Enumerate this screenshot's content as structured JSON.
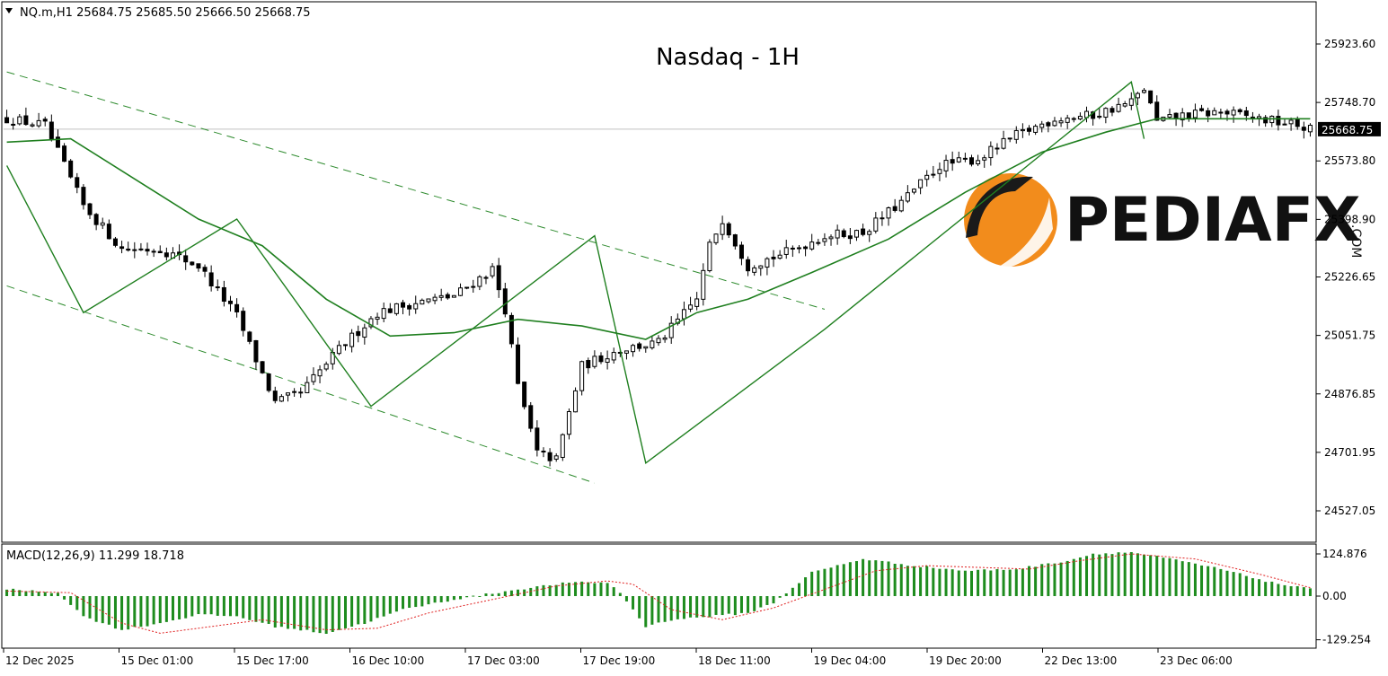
{
  "header": {
    "symbol_line": "NQ.m,H1  25684.75 25685.50 25666.50 25668.75",
    "dropdown_icon": "triangle-down-icon"
  },
  "watermark": {
    "title": "Nasdaq - 1H",
    "brand": "PEDIAFX",
    "brand_suffix": ".COM",
    "brand_color": "#f28c1c"
  },
  "colors": {
    "up_candle_fill": "#ffffff",
    "down_candle_fill": "#000000",
    "ma_line": "#1f7f1f",
    "channel_line": "#2e8b2e",
    "macd_hist": "#1e8c1e",
    "macd_signal": "#e02020",
    "current_price_line": "#c0c0c0"
  },
  "chart_data": {
    "type": "candlestick",
    "timeframe": "H1",
    "price_axis": {
      "ticks": [
        "25923.60",
        "25748.70",
        "25573.80",
        "25398.90",
        "25226.65",
        "25051.75",
        "24876.85",
        "24701.95",
        "24527.05"
      ],
      "current_price_label": "25668.75",
      "ylim": [
        24440,
        26050
      ]
    },
    "time_axis": {
      "labels": [
        "12 Dec 2025",
        "15 Dec 01:00",
        "15 Dec 17:00",
        "16 Dec 10:00",
        "17 Dec 03:00",
        "17 Dec 19:00",
        "18 Dec 11:00",
        "19 Dec 04:00",
        "19 Dec 20:00",
        "22 Dec 13:00",
        "23 Dec 06:00"
      ]
    },
    "close_path": [
      [
        0,
        25700
      ],
      [
        6,
        25680
      ],
      [
        12,
        25440
      ],
      [
        18,
        25310
      ],
      [
        24,
        25310
      ],
      [
        30,
        25260
      ],
      [
        36,
        25110
      ],
      [
        42,
        24850
      ],
      [
        46,
        24880
      ],
      [
        52,
        25010
      ],
      [
        58,
        25120
      ],
      [
        64,
        25150
      ],
      [
        70,
        25170
      ],
      [
        76,
        25250
      ],
      [
        78,
        25130
      ],
      [
        80,
        24900
      ],
      [
        83,
        24700
      ],
      [
        86,
        24680
      ],
      [
        90,
        24960
      ],
      [
        96,
        25010
      ],
      [
        102,
        25030
      ],
      [
        108,
        25160
      ],
      [
        110,
        25320
      ],
      [
        112,
        25400
      ],
      [
        116,
        25260
      ],
      [
        122,
        25300
      ],
      [
        128,
        25350
      ],
      [
        134,
        25360
      ],
      [
        140,
        25450
      ],
      [
        146,
        25560
      ],
      [
        152,
        25580
      ],
      [
        158,
        25650
      ],
      [
        164,
        25700
      ],
      [
        170,
        25710
      ],
      [
        176,
        25750
      ],
      [
        178,
        25790
      ],
      [
        180,
        25690
      ],
      [
        184,
        25710
      ],
      [
        190,
        25720
      ],
      [
        196,
        25700
      ],
      [
        202,
        25680
      ],
      [
        204,
        25668.75
      ]
    ],
    "ma_path": [
      [
        0,
        25630
      ],
      [
        10,
        25640
      ],
      [
        20,
        25520
      ],
      [
        30,
        25400
      ],
      [
        40,
        25320
      ],
      [
        50,
        25160
      ],
      [
        60,
        25050
      ],
      [
        70,
        25060
      ],
      [
        80,
        25100
      ],
      [
        90,
        25080
      ],
      [
        100,
        25040
      ],
      [
        108,
        25120
      ],
      [
        116,
        25160
      ],
      [
        126,
        25240
      ],
      [
        138,
        25340
      ],
      [
        150,
        25480
      ],
      [
        162,
        25600
      ],
      [
        172,
        25660
      ],
      [
        180,
        25700
      ],
      [
        190,
        25700
      ],
      [
        204,
        25700
      ]
    ],
    "zigzag_path": [
      [
        0,
        25560
      ],
      [
        12,
        25120
      ],
      [
        36,
        25400
      ],
      [
        57,
        24840
      ],
      [
        92,
        25350
      ],
      [
        100,
        24670
      ],
      [
        128,
        25070
      ],
      [
        176,
        25810
      ],
      [
        178,
        25640
      ]
    ],
    "channel_upper": [
      [
        0,
        25840
      ],
      [
        128,
        25130
      ]
    ],
    "channel_lower": [
      [
        0,
        25200
      ],
      [
        92,
        24610
      ]
    ],
    "indicator": {
      "label": "MACD(12,26,9) 11.299 18.718",
      "ticks": [
        "124.876",
        "0.00",
        "-129.254"
      ],
      "ylim": [
        -140,
        135
      ],
      "hist_path": [
        [
          0,
          20
        ],
        [
          8,
          10
        ],
        [
          12,
          -60
        ],
        [
          18,
          -100
        ],
        [
          24,
          -80
        ],
        [
          30,
          -55
        ],
        [
          36,
          -60
        ],
        [
          42,
          -90
        ],
        [
          50,
          -110
        ],
        [
          56,
          -80
        ],
        [
          62,
          -40
        ],
        [
          70,
          -10
        ],
        [
          80,
          20
        ],
        [
          88,
          40
        ],
        [
          94,
          40
        ],
        [
          96,
          10
        ],
        [
          100,
          -90
        ],
        [
          104,
          -70
        ],
        [
          110,
          -60
        ],
        [
          116,
          -50
        ],
        [
          120,
          -20
        ],
        [
          126,
          70
        ],
        [
          134,
          110
        ],
        [
          142,
          90
        ],
        [
          150,
          75
        ],
        [
          158,
          80
        ],
        [
          166,
          105
        ],
        [
          170,
          125
        ],
        [
          176,
          130
        ],
        [
          182,
          110
        ],
        [
          190,
          80
        ],
        [
          198,
          40
        ],
        [
          204,
          20
        ]
      ],
      "signal_path": [
        [
          0,
          15
        ],
        [
          10,
          10
        ],
        [
          18,
          -80
        ],
        [
          24,
          -110
        ],
        [
          32,
          -90
        ],
        [
          40,
          -70
        ],
        [
          50,
          -100
        ],
        [
          58,
          -95
        ],
        [
          66,
          -50
        ],
        [
          76,
          -10
        ],
        [
          86,
          30
        ],
        [
          94,
          45
        ],
        [
          98,
          35
        ],
        [
          104,
          -40
        ],
        [
          112,
          -70
        ],
        [
          120,
          -35
        ],
        [
          128,
          20
        ],
        [
          136,
          75
        ],
        [
          144,
          90
        ],
        [
          152,
          85
        ],
        [
          160,
          80
        ],
        [
          168,
          105
        ],
        [
          176,
          125
        ],
        [
          186,
          110
        ],
        [
          196,
          65
        ],
        [
          204,
          25
        ]
      ]
    }
  }
}
